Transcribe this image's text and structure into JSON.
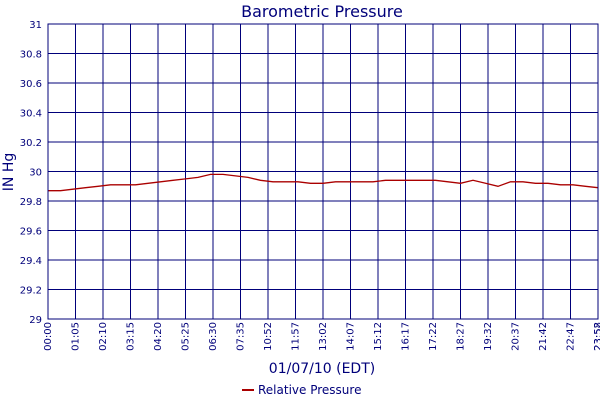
{
  "chart_data": {
    "type": "line",
    "title": "Barometric Pressure",
    "xlabel": "01/07/10 (EDT)",
    "ylabel": "IN Hg",
    "ylim": [
      29,
      31
    ],
    "yticks": [
      "29",
      "29.2",
      "29.4",
      "29.6",
      "29.8",
      "30",
      "30.2",
      "30.4",
      "30.6",
      "30.8",
      "31"
    ],
    "xticks": [
      "00:00",
      "01:05",
      "02:10",
      "03:15",
      "04:20",
      "05:25",
      "06:30",
      "07:35",
      "10:52",
      "11:57",
      "13:02",
      "14:07",
      "15:12",
      "16:17",
      "17:22",
      "18:27",
      "19:32",
      "20:37",
      "21:42",
      "22:47",
      "23:52",
      "23:58"
    ],
    "grid": true,
    "legend_position": "bottom-center",
    "colors": {
      "line": "#aa0000",
      "grid": "#00007a",
      "text": "#00007a"
    },
    "series": [
      {
        "name": "Relative Pressure",
        "values": [
          29.87,
          29.87,
          29.88,
          29.89,
          29.9,
          29.91,
          29.91,
          29.91,
          29.92,
          29.93,
          29.94,
          29.95,
          29.96,
          29.98,
          29.98,
          29.97,
          29.96,
          29.94,
          29.93,
          29.93,
          29.93,
          29.92,
          29.92,
          29.93,
          29.93,
          29.93,
          29.93,
          29.94,
          29.94,
          29.94,
          29.94,
          29.94,
          29.93,
          29.92,
          29.94,
          29.92,
          29.9,
          29.93,
          29.93,
          29.92,
          29.92,
          29.91,
          29.91,
          29.9,
          29.89
        ]
      }
    ]
  }
}
